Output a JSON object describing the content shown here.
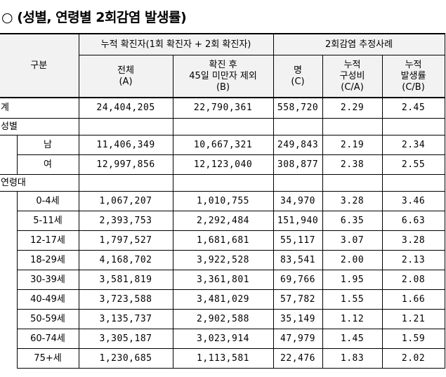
{
  "title": "○ (성별, 연령별 2회감염 발생률)",
  "table": {
    "header": {
      "category": "구분",
      "group_1": "누적 확진자(1회 확진자 + 2회 확진자)",
      "group_2": "2회감염 추정사례",
      "columns": [
        "전체\n(A)",
        "확진 후\n45일 미만자 제외\n(B)",
        "명\n(C)",
        "누적\n구성비\n(C/A)",
        "누적\n발생률\n(C/B)"
      ]
    },
    "total": {
      "label": "계",
      "values": [
        "24,404,205",
        "22,790,361",
        "558,720",
        "2.29",
        "2.45"
      ]
    },
    "groups": [
      {
        "label": "성별",
        "rows": [
          {
            "label": "남",
            "values": [
              "11,406,349",
              "10,667,321",
              "249,843",
              "2.19",
              "2.34"
            ]
          },
          {
            "label": "여",
            "values": [
              "12,997,856",
              "12,123,040",
              "308,877",
              "2.38",
              "2.55"
            ]
          }
        ]
      },
      {
        "label": "연령대",
        "rows": [
          {
            "label": "0-4세",
            "values": [
              "1,067,207",
              "1,010,755",
              "34,970",
              "3.28",
              "3.46"
            ]
          },
          {
            "label": "5-11세",
            "values": [
              "2,393,753",
              "2,292,484",
              "151,940",
              "6.35",
              "6.63"
            ]
          },
          {
            "label": "12-17세",
            "values": [
              "1,797,527",
              "1,681,681",
              "55,117",
              "3.07",
              "3.28"
            ]
          },
          {
            "label": "18-29세",
            "values": [
              "4,168,702",
              "3,922,528",
              "83,541",
              "2.00",
              "2.13"
            ]
          },
          {
            "label": "30-39세",
            "values": [
              "3,581,819",
              "3,361,801",
              "69,766",
              "1.95",
              "2.08"
            ]
          },
          {
            "label": "40-49세",
            "values": [
              "3,723,588",
              "3,481,029",
              "57,782",
              "1.55",
              "1.66"
            ]
          },
          {
            "label": "50-59세",
            "values": [
              "3,135,737",
              "2,902,588",
              "35,149",
              "1.12",
              "1.21"
            ]
          },
          {
            "label": "60-74세",
            "values": [
              "3,305,187",
              "3,023,914",
              "47,979",
              "1.45",
              "1.59"
            ]
          },
          {
            "label": "75+세",
            "values": [
              "1,230,685",
              "1,113,581",
              "22,476",
              "1.83",
              "2.02"
            ]
          }
        ]
      }
    ]
  }
}
